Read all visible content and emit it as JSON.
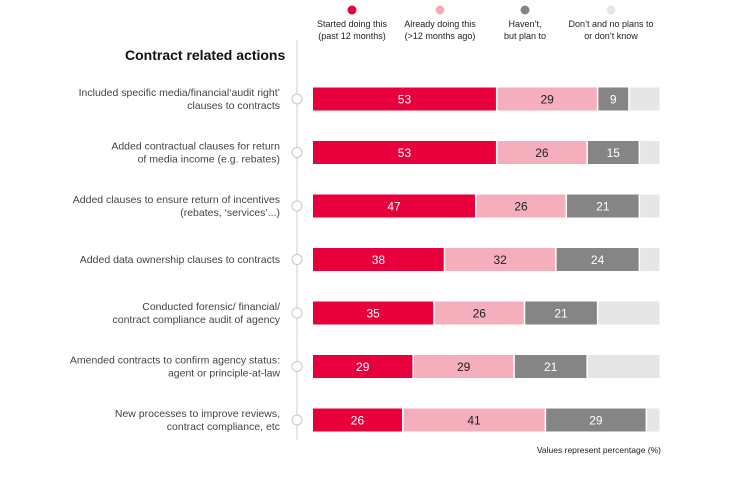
{
  "chart_data": {
    "type": "bar",
    "orientation": "horizontal",
    "stacked": true,
    "title": "Contract related actions",
    "footnote": "Values represent percentage (%)",
    "legend_position": "top",
    "categories": [
      [
        "Included specific media/financial‘audit right’",
        "clauses to contracts"
      ],
      [
        "Added contractual clauses for return",
        "of media income (e.g. rebates)"
      ],
      [
        "Added clauses to ensure return of incentives",
        "(rebates, ‘services’...)"
      ],
      [
        "Added data ownership clauses to contracts"
      ],
      [
        "Conducted forensic/ financial/",
        "contract compliance audit of agency"
      ],
      [
        "Amended contracts to confirm agency status:",
        "agent or principle-at-law"
      ],
      [
        "New processes to improve reviews,",
        "contract compliance, etc"
      ]
    ],
    "series": [
      {
        "name": [
          "Started doing this",
          "(past 12 months)"
        ],
        "color": "#e8003d",
        "text_color": "#ffffff",
        "values": [
          53,
          53,
          47,
          38,
          35,
          29,
          26
        ]
      },
      {
        "name": [
          "Already doing this",
          "(>12 months ago)"
        ],
        "color": "#f4aebc",
        "text_color": "#222222",
        "values": [
          29,
          26,
          26,
          32,
          26,
          29,
          41
        ]
      },
      {
        "name": [
          "Haven’t,",
          "but plan to"
        ],
        "color": "#858585",
        "text_color": "#ffffff",
        "values": [
          9,
          15,
          21,
          24,
          21,
          21,
          29
        ]
      },
      {
        "name": [
          "Don’t and no plans to",
          "or don’t know"
        ],
        "color": "#e6e6e6",
        "text_color": "#222222",
        "values": [
          9,
          6,
          6,
          6,
          18,
          21,
          4
        ]
      }
    ],
    "label_series": [
      0,
      1,
      2
    ],
    "xlim": [
      0,
      100
    ]
  }
}
